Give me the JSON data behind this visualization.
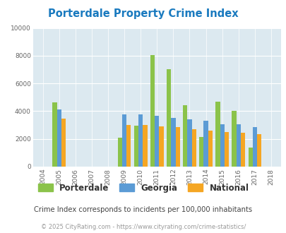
{
  "title": "Porterdale Property Crime Index",
  "years": [
    2004,
    2005,
    2006,
    2007,
    2008,
    2009,
    2010,
    2011,
    2012,
    2013,
    2014,
    2015,
    2016,
    2017,
    2018
  ],
  "porterdale": [
    0,
    4650,
    0,
    0,
    0,
    2100,
    2950,
    8050,
    7050,
    4450,
    2150,
    4700,
    4000,
    1350,
    0
  ],
  "georgia": [
    0,
    4100,
    0,
    0,
    0,
    3750,
    3750,
    3650,
    3500,
    3400,
    3300,
    3050,
    3050,
    2850,
    0
  ],
  "national": [
    0,
    3450,
    0,
    0,
    0,
    3000,
    3000,
    2900,
    2850,
    2700,
    2600,
    2500,
    2450,
    2350,
    0
  ],
  "color_porterdale": "#8bc34a",
  "color_georgia": "#5b9bd5",
  "color_national": "#f5a623",
  "bg_color": "#dce9f0",
  "ylim": [
    0,
    10000
  ],
  "yticks": [
    0,
    2000,
    4000,
    6000,
    8000,
    10000
  ],
  "subtitle": "Crime Index corresponds to incidents per 100,000 inhabitants",
  "footer": "© 2025 CityRating.com - https://www.cityrating.com/crime-statistics/",
  "bar_width": 0.27,
  "title_color": "#1a7abf",
  "subtitle_color": "#444444",
  "footer_color": "#999999",
  "xlim_left": 2003.4,
  "xlim_right": 2018.6
}
